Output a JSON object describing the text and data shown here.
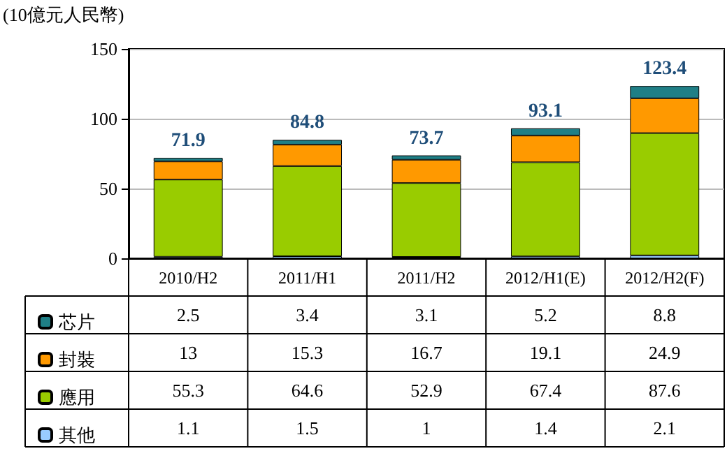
{
  "chart_data": {
    "type": "bar",
    "ylabel": "(10億元人民幣)",
    "categories": [
      "2010/H2",
      "2011/H1",
      "2011/H2",
      "2012/H1(E)",
      "2012/H2(F)"
    ],
    "stacked": true,
    "series": [
      {
        "name": "其他",
        "color": "#99ccff",
        "values": [
          1.1,
          1.5,
          1,
          1.4,
          2.1
        ]
      },
      {
        "name": "應用",
        "color": "#99cc00",
        "values": [
          55.3,
          64.6,
          52.9,
          67.4,
          87.6
        ]
      },
      {
        "name": "封裝",
        "color": "#ff9900",
        "values": [
          13,
          15.3,
          16.7,
          19.1,
          24.9
        ]
      },
      {
        "name": "芯片",
        "color": "#1f7f86",
        "values": [
          2.5,
          3.4,
          3.1,
          5.2,
          8.8
        ]
      }
    ],
    "totals": [
      "71.9",
      "84.8",
      "73.7",
      "93.1",
      "123.4"
    ],
    "data_labels": true,
    "ylim": [
      0,
      150
    ],
    "yticks": [
      0,
      50,
      100,
      150
    ],
    "grid": "y",
    "legend": "bottom left"
  }
}
